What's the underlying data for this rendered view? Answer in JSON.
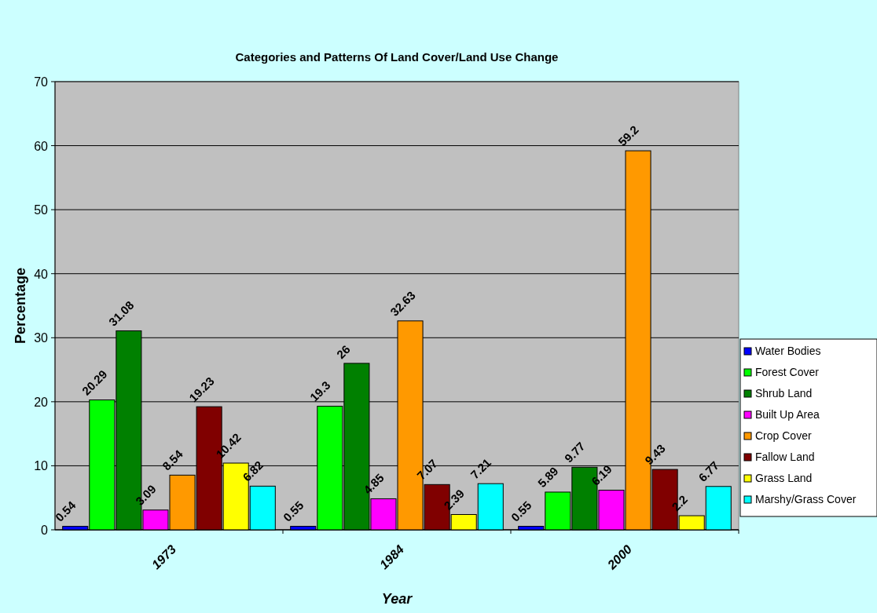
{
  "chart_data": {
    "type": "bar",
    "title": "Categories and Patterns Of Land Cover/Land Use Change",
    "xlabel": "Year",
    "ylabel": "Percentage",
    "categories": [
      "1973",
      "1984",
      "2000"
    ],
    "series": [
      {
        "name": "Water Bodies",
        "color": "#0000ff",
        "values": [
          0.54,
          0.55,
          0.55
        ]
      },
      {
        "name": "Forest Cover",
        "color": "#00ff00",
        "values": [
          20.29,
          19.3,
          5.89
        ]
      },
      {
        "name": "Shrub Land",
        "color": "#008000",
        "values": [
          31.08,
          26,
          9.77
        ]
      },
      {
        "name": "Built Up Area",
        "color": "#ff00ff",
        "values": [
          3.09,
          4.85,
          6.19
        ]
      },
      {
        "name": "Crop Cover",
        "color": "#ff9900",
        "values": [
          8.54,
          32.63,
          59.2
        ]
      },
      {
        "name": "Fallow Land",
        "color": "#800000",
        "values": [
          19.23,
          7.07,
          9.43
        ]
      },
      {
        "name": "Grass Land",
        "color": "#ffff00",
        "values": [
          10.42,
          2.39,
          2.2
        ]
      },
      {
        "name": "Marshy/Grass Cover",
        "color": "#00ffff",
        "values": [
          6.82,
          7.21,
          6.77
        ]
      }
    ],
    "ylim": [
      0,
      70
    ],
    "yticks": [
      0,
      10,
      20,
      30,
      40,
      50,
      60,
      70
    ],
    "grid": "y",
    "legend": "right",
    "data_labels": true
  }
}
